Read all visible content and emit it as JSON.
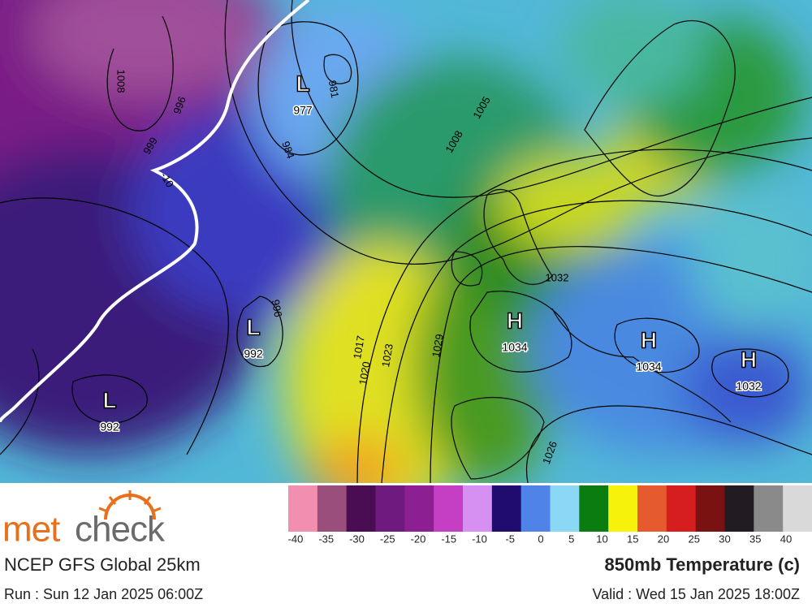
{
  "map": {
    "pressure_systems": [
      {
        "kind": "L",
        "value": "977"
      },
      {
        "kind": "L",
        "value": "992"
      },
      {
        "kind": "L",
        "value": "992"
      },
      {
        "kind": "H",
        "value": "1034"
      },
      {
        "kind": "H",
        "value": "1034"
      },
      {
        "kind": "H",
        "value": "1032"
      }
    ],
    "contour_labels": [
      "1008",
      "996",
      "999",
      "984",
      "981",
      "1008",
      "1005",
      "1032",
      "1017",
      "1020",
      "1023",
      "1029",
      "1026",
      "996",
      "-10"
    ]
  },
  "legend": {
    "colors": [
      "#f28fb0",
      "#9a4e7c",
      "#4a0c52",
      "#6e1a7e",
      "#8c1f92",
      "#c43fc4",
      "#d690f2",
      "#1f0c6e",
      "#4f83e8",
      "#8ad8f6",
      "#0b7d10",
      "#f7f20c",
      "#e55a2e",
      "#d61e1e",
      "#7a1212",
      "#221b22",
      "#8a8a8a",
      "#d9d9d9"
    ],
    "labels": [
      -40,
      -35,
      -30,
      -25,
      -20,
      -15,
      -10,
      -5,
      0,
      5,
      10,
      15,
      20,
      25,
      30,
      35,
      40
    ]
  },
  "footer": {
    "brand_a": "met",
    "brand_b": "check",
    "model": "NCEP GFS Global 25km",
    "run": "Run : Sun 12 Jan 2025 06:00Z",
    "title": "850mb Temperature (c)",
    "valid": "Valid : Wed 15 Jan 2025 18:00Z"
  }
}
